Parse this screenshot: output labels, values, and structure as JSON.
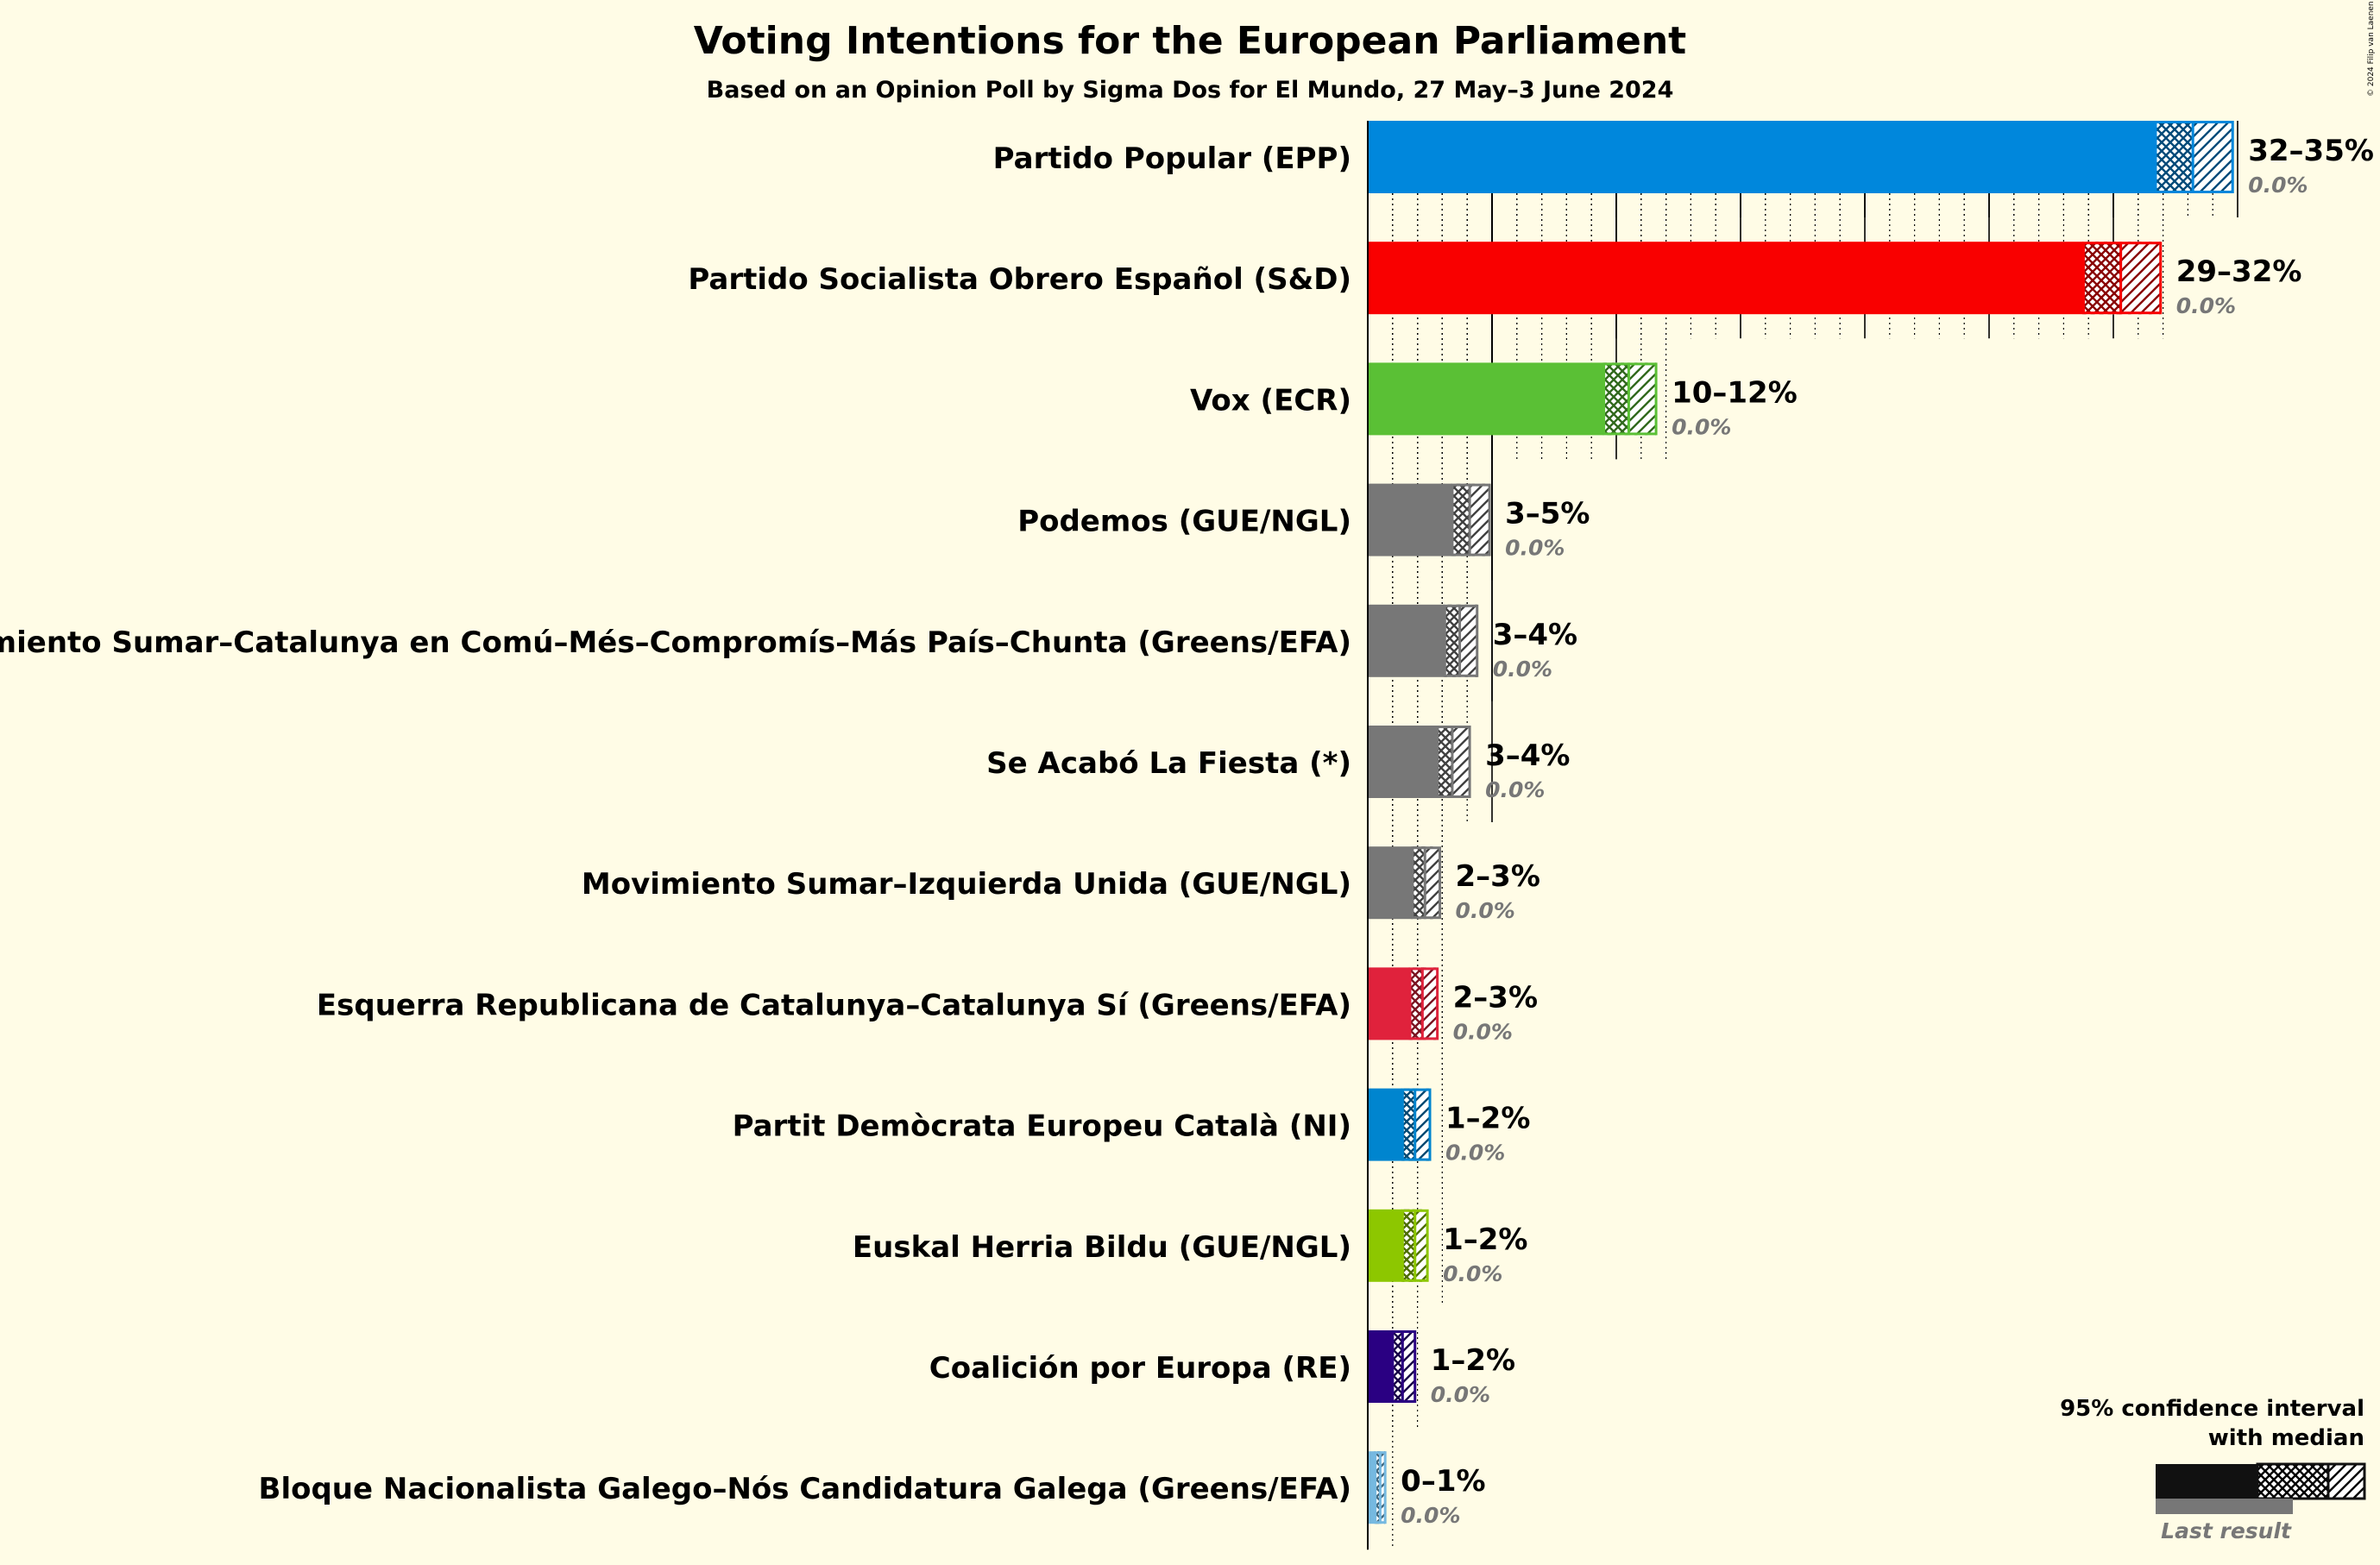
{
  "title": "Voting Intentions for the European Parliament",
  "subtitle": "Based on an Opinion Poll by Sigma Dos for El Mundo, 27 May–3 June 2024",
  "copyright": "© 2024 Filip van Laenen",
  "legend": {
    "line1": "95% confidence interval",
    "line2": "with median",
    "last_result": "Last result"
  },
  "chart_data": {
    "type": "bar",
    "orientation": "horizontal",
    "xlim": [
      0,
      36
    ],
    "grid": true,
    "legend_position": "bottom-right",
    "parties": [
      {
        "name": "Partido Popular (EPP)",
        "range": "32–35%",
        "last": "0.0%",
        "low": 31.7,
        "median": 33.2,
        "high": 34.8,
        "color": "#0087DC"
      },
      {
        "name": "Partido Socialista Obrero Español (S&D)",
        "range": "29–32%",
        "last": "0.0%",
        "low": 28.8,
        "median": 30.3,
        "high": 31.9,
        "color": "#F90000"
      },
      {
        "name": "Vox (ECR)",
        "range": "10–12%",
        "last": "0.0%",
        "low": 9.5,
        "median": 10.5,
        "high": 11.6,
        "color": "#5AC035"
      },
      {
        "name": "Podemos (GUE/NGL)",
        "range": "3–5%",
        "last": "0.0%",
        "low": 3.4,
        "median": 4.1,
        "high": 4.9,
        "color": "#777777"
      },
      {
        "name": "Movimiento Sumar–Catalunya en Comú–Més–Compromís–Más País–Chunta (Greens/EFA)",
        "range": "3–4%",
        "last": "0.0%",
        "low": 3.1,
        "median": 3.7,
        "high": 4.4,
        "color": "#777777"
      },
      {
        "name": "Se Acabó La Fiesta (*)",
        "range": "3–4%",
        "last": "0.0%",
        "low": 2.8,
        "median": 3.4,
        "high": 4.1,
        "color": "#777777"
      },
      {
        "name": "Movimiento Sumar–Izquierda Unida (GUE/NGL)",
        "range": "2–3%",
        "last": "0.0%",
        "low": 1.8,
        "median": 2.3,
        "high": 2.9,
        "color": "#777777"
      },
      {
        "name": "Esquerra Republicana de Catalunya–Catalunya Sí (Greens/EFA)",
        "range": "2–3%",
        "last": "0.0%",
        "low": 1.7,
        "median": 2.2,
        "high": 2.8,
        "color": "#E0223C"
      },
      {
        "name": "Partit Demòcrata Europeu Català (NI)",
        "range": "1–2%",
        "last": "0.0%",
        "low": 1.4,
        "median": 1.9,
        "high": 2.5,
        "color": "#0085CF"
      },
      {
        "name": "Euskal Herria Bildu (GUE/NGL)",
        "range": "1–2%",
        "last": "0.0%",
        "low": 1.4,
        "median": 1.9,
        "high": 2.4,
        "color": "#8DC700"
      },
      {
        "name": "Coalición por Europa (RE)",
        "range": "1–2%",
        "last": "0.0%",
        "low": 1.0,
        "median": 1.4,
        "high": 1.9,
        "color": "#2A0082"
      },
      {
        "name": "Bloque Nacionalista Galego–Nós Candidatura Galega (Greens/EFA)",
        "range": "0–1%",
        "last": "0.0%",
        "low": 0.3,
        "median": 0.5,
        "high": 0.7,
        "color": "#76B9E0"
      }
    ]
  }
}
